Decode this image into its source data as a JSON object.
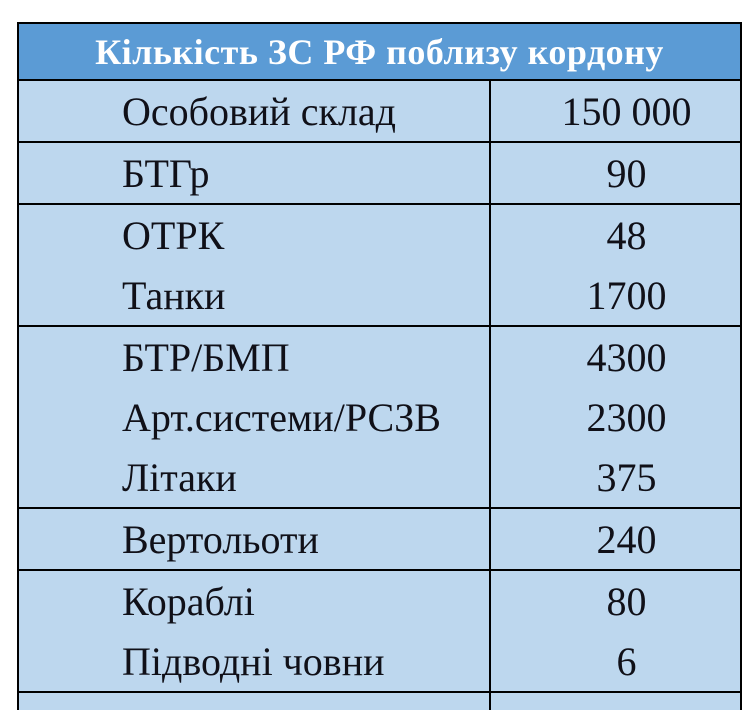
{
  "title": "Кількість ЗС РФ поблизу кордону",
  "colors": {
    "header_bg": "#5B9BD5",
    "header_text": "#FFFFFF",
    "row_bg": "#BDD7EE",
    "border": "#000000",
    "body_text": "#101018"
  },
  "table": {
    "groups": [
      {
        "rows": [
          {
            "label": "Особовий склад",
            "value": "150 000"
          }
        ]
      },
      {
        "rows": [
          {
            "label": "БТГр",
            "value": "90"
          }
        ]
      },
      {
        "rows": [
          {
            "label": "ОТРК",
            "value": "48"
          },
          {
            "label": "Танки",
            "value": "1700"
          }
        ]
      },
      {
        "rows": [
          {
            "label": "БТР/БМП",
            "value": "4300"
          },
          {
            "label": "Арт.системи/РСЗВ",
            "value": "2300"
          },
          {
            "label": "Літаки",
            "value": "375"
          }
        ]
      },
      {
        "rows": [
          {
            "label": "Вертольоти",
            "value": "240"
          }
        ]
      },
      {
        "rows": [
          {
            "label": "Кораблі",
            "value": "80"
          },
          {
            "label": "Підводні човни",
            "value": "6"
          }
        ]
      }
    ]
  }
}
